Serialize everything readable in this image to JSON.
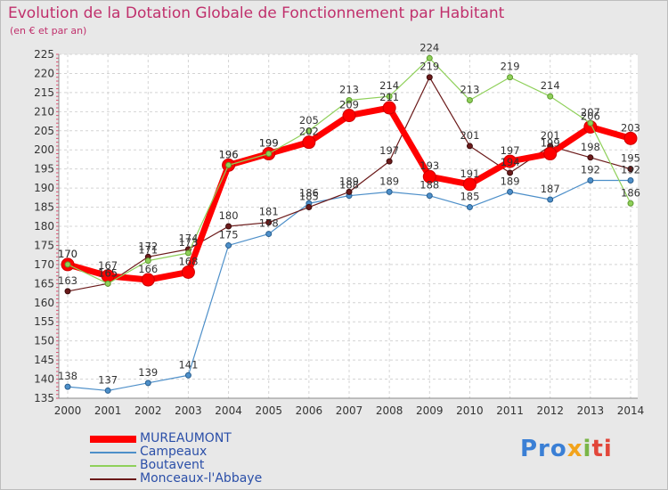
{
  "title": "Evolution de la Dotation Globale de Fonctionnement par Habitant",
  "subtitle": "(en € et par an)",
  "logo": {
    "part1": "Pro",
    "part2": "x",
    "part3": "i",
    "part4": "ti"
  },
  "chart_data": {
    "type": "line",
    "title": "Evolution de la Dotation Globale de Fonctionnement par Habitant",
    "ylabel": "(en € et par an)",
    "xlabel": "",
    "ylim": [
      135,
      225
    ],
    "y_ticks": [
      135,
      140,
      145,
      150,
      155,
      160,
      165,
      170,
      175,
      180,
      185,
      190,
      195,
      200,
      205,
      210,
      215,
      220,
      225
    ],
    "categories": [
      "2000",
      "2001",
      "2002",
      "2003",
      "2004",
      "2005",
      "2006",
      "2007",
      "2008",
      "2009",
      "2010",
      "2011",
      "2012",
      "2013",
      "2014"
    ],
    "grid": true,
    "legend_position": "bottom-left",
    "series": [
      {
        "name": "Campeaux",
        "color": "#4d8fc9",
        "values": [
          138,
          137,
          139,
          141,
          175,
          178,
          186,
          188,
          189,
          188,
          185,
          189,
          187,
          192,
          192
        ]
      },
      {
        "name": "Boutavent",
        "color": "#8fd05a",
        "values": [
          170,
          165,
          171,
          173,
          196,
          199,
          205,
          213,
          214,
          224,
          213,
          219,
          214,
          207,
          186
        ]
      },
      {
        "name": "Monceaux-l'Abbaye",
        "color": "#6b1a1a",
        "values": [
          163,
          165,
          172,
          174,
          180,
          181,
          185,
          189,
          197,
          219,
          201,
          194,
          201,
          198,
          195
        ]
      },
      {
        "name": "MUREAUMONT",
        "color": "#ff0000",
        "values": [
          170,
          167,
          166,
          168,
          196,
          199,
          202,
          209,
          211,
          193,
          191,
          197,
          199,
          206,
          203
        ]
      }
    ],
    "point_labels": [
      {
        "series": "Campeaux",
        "labels": [
          "138",
          "137",
          "139",
          "141",
          "175",
          "178",
          "186",
          "188",
          "189",
          "188",
          "185",
          "189",
          "187",
          "192",
          "192"
        ]
      },
      {
        "series": "Boutavent",
        "labels": [
          "170",
          "165",
          "171",
          "173",
          "196",
          "199",
          "205",
          "213",
          "214",
          "224",
          "213",
          "219",
          "214",
          "207",
          "186"
        ]
      },
      {
        "series": "Monceaux-l'Abbaye",
        "labels": [
          "163",
          "165",
          "172",
          "174",
          "180",
          "181",
          "185",
          "189",
          "197",
          "219",
          "201",
          "194",
          "201",
          "198",
          "195"
        ]
      },
      {
        "series": "MUREAUMONT",
        "labels": [
          "170",
          "167",
          "166",
          "168",
          "196",
          "199",
          "202",
          "209",
          "211",
          "193",
          "191",
          "197",
          "199",
          "206",
          "203"
        ]
      }
    ],
    "legend_order": [
      "MUREAUMONT",
      "Campeaux",
      "Boutavent",
      "Monceaux-l'Abbaye"
    ]
  }
}
